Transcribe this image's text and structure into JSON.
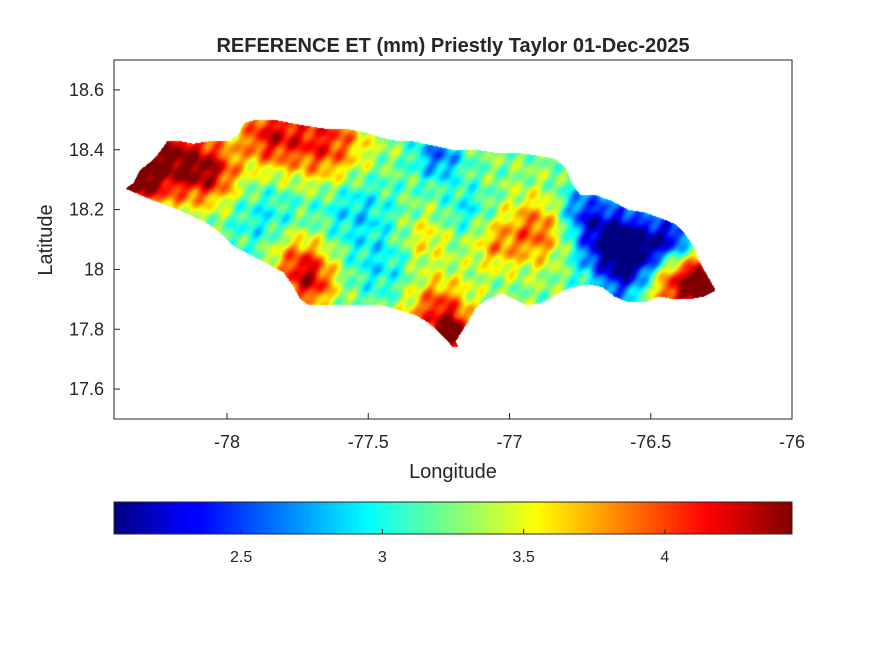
{
  "chart_data": {
    "type": "heatmap",
    "title": "REFERENCE ET (mm) Priestly Taylor 01-Dec-2025",
    "xlabel": "Longitude",
    "ylabel": "Latitude",
    "xlim": [
      -78.4,
      -76
    ],
    "ylim": [
      17.5,
      18.7
    ],
    "xticks": [
      -78,
      -77.5,
      -77,
      -76.5,
      -76
    ],
    "xtick_labels": [
      "-78",
      "-77.5",
      "-77",
      "-76.5",
      "-76"
    ],
    "yticks": [
      17.6,
      17.8,
      18,
      18.2,
      18.4,
      18.6
    ],
    "ytick_labels": [
      "17.6",
      "17.8",
      "18",
      "18.2",
      "18.4",
      "18.6"
    ],
    "grid": false,
    "colormap": "jet",
    "colorbar": {
      "location": "bottom",
      "range": [
        2.05,
        4.45
      ],
      "ticks": [
        2.5,
        3,
        3.5,
        4
      ],
      "tick_labels": [
        "2.5",
        "3",
        "3.5",
        "4"
      ]
    },
    "value_field": {
      "base": 3.25,
      "hotspots": [
        {
          "lon": -78.2,
          "lat": 18.37,
          "value": 4.4,
          "radius": 0.1
        },
        {
          "lon": -78.33,
          "lat": 18.29,
          "value": 4.25,
          "radius": 0.06
        },
        {
          "lon": -78.05,
          "lat": 18.32,
          "value": 4.0,
          "radius": 0.07
        },
        {
          "lon": -77.85,
          "lat": 18.45,
          "value": 4.1,
          "radius": 0.08
        },
        {
          "lon": -77.65,
          "lat": 18.42,
          "value": 4.1,
          "radius": 0.1
        },
        {
          "lon": -77.75,
          "lat": 18.03,
          "value": 4.0,
          "radius": 0.08
        },
        {
          "lon": -77.7,
          "lat": 17.95,
          "value": 3.9,
          "radius": 0.06
        },
        {
          "lon": -77.25,
          "lat": 17.85,
          "value": 4.15,
          "radius": 0.08
        },
        {
          "lon": -77.2,
          "lat": 17.78,
          "value": 4.3,
          "radius": 0.04
        },
        {
          "lon": -76.9,
          "lat": 18.13,
          "value": 3.95,
          "radius": 0.08
        },
        {
          "lon": -77.05,
          "lat": 18.08,
          "value": 3.7,
          "radius": 0.06
        },
        {
          "lon": -77.3,
          "lat": 18.1,
          "value": 3.6,
          "radius": 0.06
        },
        {
          "lon": -76.4,
          "lat": 17.96,
          "value": 4.3,
          "radius": 0.09
        },
        {
          "lon": -76.3,
          "lat": 17.94,
          "value": 4.4,
          "radius": 0.05
        },
        {
          "lon": -77.55,
          "lat": 18.2,
          "value": 2.85,
          "radius": 0.1
        },
        {
          "lon": -77.85,
          "lat": 18.15,
          "value": 2.9,
          "radius": 0.1
        },
        {
          "lon": -77.45,
          "lat": 18.0,
          "value": 2.95,
          "radius": 0.08
        },
        {
          "lon": -77.25,
          "lat": 18.38,
          "value": 2.6,
          "radius": 0.06
        },
        {
          "lon": -77.15,
          "lat": 18.2,
          "value": 2.95,
          "radius": 0.06
        },
        {
          "lon": -76.65,
          "lat": 18.1,
          "value": 2.3,
          "radius": 0.09
        },
        {
          "lon": -76.55,
          "lat": 18.05,
          "value": 2.2,
          "radius": 0.08
        },
        {
          "lon": -76.42,
          "lat": 18.1,
          "value": 2.3,
          "radius": 0.06
        },
        {
          "lon": -76.75,
          "lat": 18.2,
          "value": 2.7,
          "radius": 0.06
        },
        {
          "lon": -76.6,
          "lat": 17.93,
          "value": 2.9,
          "radius": 0.06
        }
      ]
    }
  }
}
